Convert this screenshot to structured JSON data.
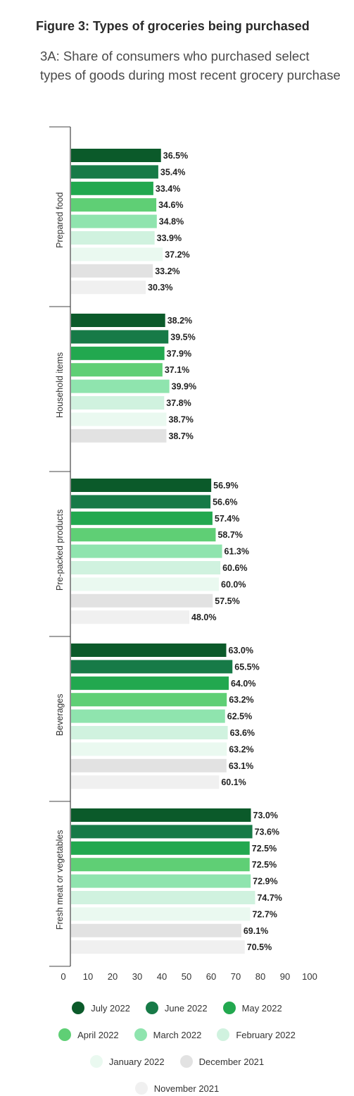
{
  "header": {
    "title": "Figure 3: Types of groceries being purchased",
    "subtitle": "3A: Share of consumers who purchased select types of goods during most recent grocery purchase"
  },
  "chart_data": {
    "type": "bar",
    "orientation": "horizontal",
    "title": "Figure 3: Types of groceries being purchased",
    "subtitle": "3A: Share of consumers who purchased select types of goods during most recent grocery purchase",
    "categories": [
      "Prepared food",
      "Household items",
      "Pre-packed products",
      "Beverages",
      "Fresh meat or vegetables"
    ],
    "series": [
      {
        "name": "July 2022",
        "color": "#0b5a2a",
        "values": [
          36.5,
          38.2,
          56.9,
          63.0,
          73.0
        ]
      },
      {
        "name": "June 2022",
        "color": "#177a47",
        "values": [
          35.4,
          39.5,
          56.6,
          65.5,
          73.6
        ]
      },
      {
        "name": "May 2022",
        "color": "#22a84f",
        "values": [
          33.4,
          37.9,
          57.4,
          64.0,
          72.5
        ]
      },
      {
        "name": "April 2022",
        "color": "#5fcf75",
        "values": [
          34.6,
          37.1,
          58.7,
          63.2,
          72.5
        ]
      },
      {
        "name": "March 2022",
        "color": "#8fe4ae",
        "values": [
          34.8,
          39.9,
          61.3,
          62.5,
          72.9
        ]
      },
      {
        "name": "February 2022",
        "color": "#d0f2df",
        "values": [
          33.9,
          37.8,
          60.6,
          63.6,
          74.7
        ]
      },
      {
        "name": "January 2022",
        "color": "#eaf9f0",
        "values": [
          37.2,
          38.7,
          60.0,
          63.2,
          72.7
        ]
      },
      {
        "name": "December 2021",
        "color": "#e2e2e2",
        "values": [
          33.2,
          38.7,
          57.5,
          63.1,
          69.1
        ]
      },
      {
        "name": "November 2021",
        "color": "#f0f0f0",
        "values": [
          30.3,
          null,
          48.0,
          60.1,
          70.5
        ]
      }
    ],
    "value_labels": [
      [
        "36.5%",
        "35.4%",
        "33.4%",
        "34.6%",
        "34.8%",
        "33.9%",
        "37.2%",
        "33.2%",
        "30.3%"
      ],
      [
        "38.2%",
        "39.5%",
        "37.9%",
        "37.1%",
        "39.9%",
        "37.8%",
        "38.7%",
        "38.7%",
        null
      ],
      [
        "56.9%",
        "56.6%",
        "57.4%",
        "58.7%",
        "61.3%",
        "60.6%",
        "60.0%",
        "57.5%",
        "48.0%"
      ],
      [
        "63.0%",
        "65.5%",
        "64.0%",
        "63.2%",
        "62.5%",
        "63.6%",
        "63.2%",
        "63.1%",
        "60.1%"
      ],
      [
        "73.0%",
        "73.6%",
        "72.5%",
        "72.5%",
        "72.9%",
        "74.7%",
        "72.7%",
        "69.1%",
        "70.5%"
      ]
    ],
    "xaxis": {
      "ticks": [
        0,
        10,
        20,
        30,
        40,
        50,
        60,
        70,
        80,
        90,
        100
      ],
      "tick_labels": [
        "0",
        "10",
        "20",
        "30",
        "40",
        "50",
        "60",
        "70",
        "80",
        "90",
        "100"
      ]
    },
    "xlim": [
      0,
      100
    ],
    "grid": false,
    "legend_position": "bottom"
  }
}
